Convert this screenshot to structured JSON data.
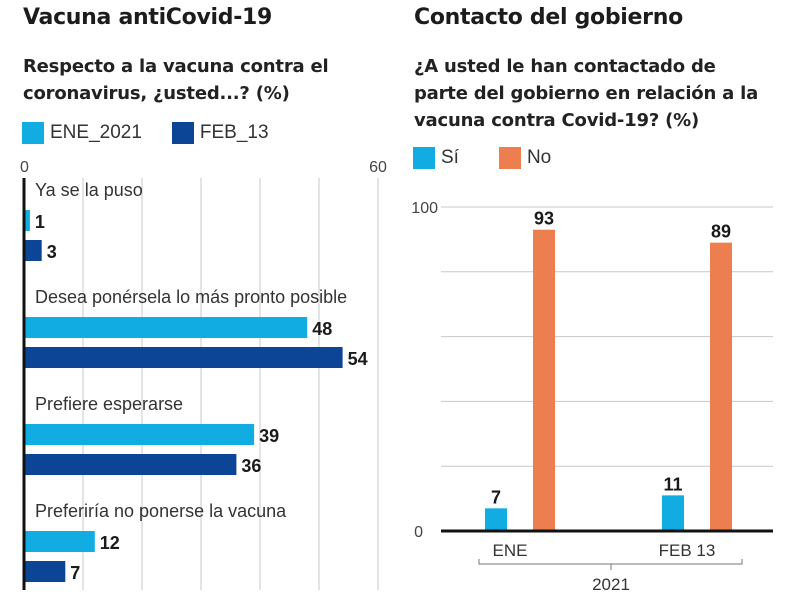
{
  "left": {
    "title": "Vacuna antiCovid-19",
    "subtitle_line1": "Respecto a la vacuna contra el",
    "subtitle_line2": "coronavirus, ¿usted...?  (%)",
    "legend": [
      {
        "label": "ENE_2021",
        "color": "#11ade2"
      },
      {
        "label": "FEB_13",
        "color": "#0d4596"
      }
    ]
  },
  "right": {
    "title": "Contacto del gobierno",
    "subtitle_line1": "¿A usted le han contactado de",
    "subtitle_line2": "parte del gobierno en relación a la",
    "subtitle_line3": "vacuna contra Covid-19?  (%)",
    "legend": [
      {
        "label": "Sí",
        "color": "#11ade2"
      },
      {
        "label": "No",
        "color": "#ec7e4f"
      }
    ]
  },
  "chart_data": [
    {
      "type": "bar",
      "orientation": "horizontal",
      "title": "Respecto a la vacuna contra el coronavirus, ¿usted...? (%)",
      "categories": [
        "Ya se la puso",
        "Desea ponérsela lo más pronto posible",
        "Prefiere esperarse",
        "Preferiría no ponerse la vacuna"
      ],
      "series": [
        {
          "name": "ENE_2021",
          "color": "#11ade2",
          "values": [
            1,
            48,
            39,
            12
          ]
        },
        {
          "name": "FEB_13",
          "color": "#0d4596",
          "values": [
            3,
            54,
            36,
            7
          ]
        }
      ],
      "xlim": [
        0,
        60
      ],
      "x_tick_labels": [
        "0",
        "60"
      ],
      "grid_step": 10,
      "grid": true,
      "legend_position": "top-left"
    },
    {
      "type": "bar",
      "orientation": "vertical",
      "title": "¿A usted le han contactado de parte del gobierno en relación a la vacuna contra Covid-19? (%)",
      "categories": [
        "ENE",
        "FEB 13"
      ],
      "group_label": "2021",
      "series": [
        {
          "name": "Sí",
          "color": "#11ade2",
          "values": [
            7,
            11
          ]
        },
        {
          "name": "No",
          "color": "#ec7e4f",
          "values": [
            93,
            89
          ]
        }
      ],
      "ylim": [
        0,
        100
      ],
      "y_tick_labels": [
        "0",
        "100"
      ],
      "grid_step": 20,
      "grid": true,
      "legend_position": "top-left"
    }
  ]
}
